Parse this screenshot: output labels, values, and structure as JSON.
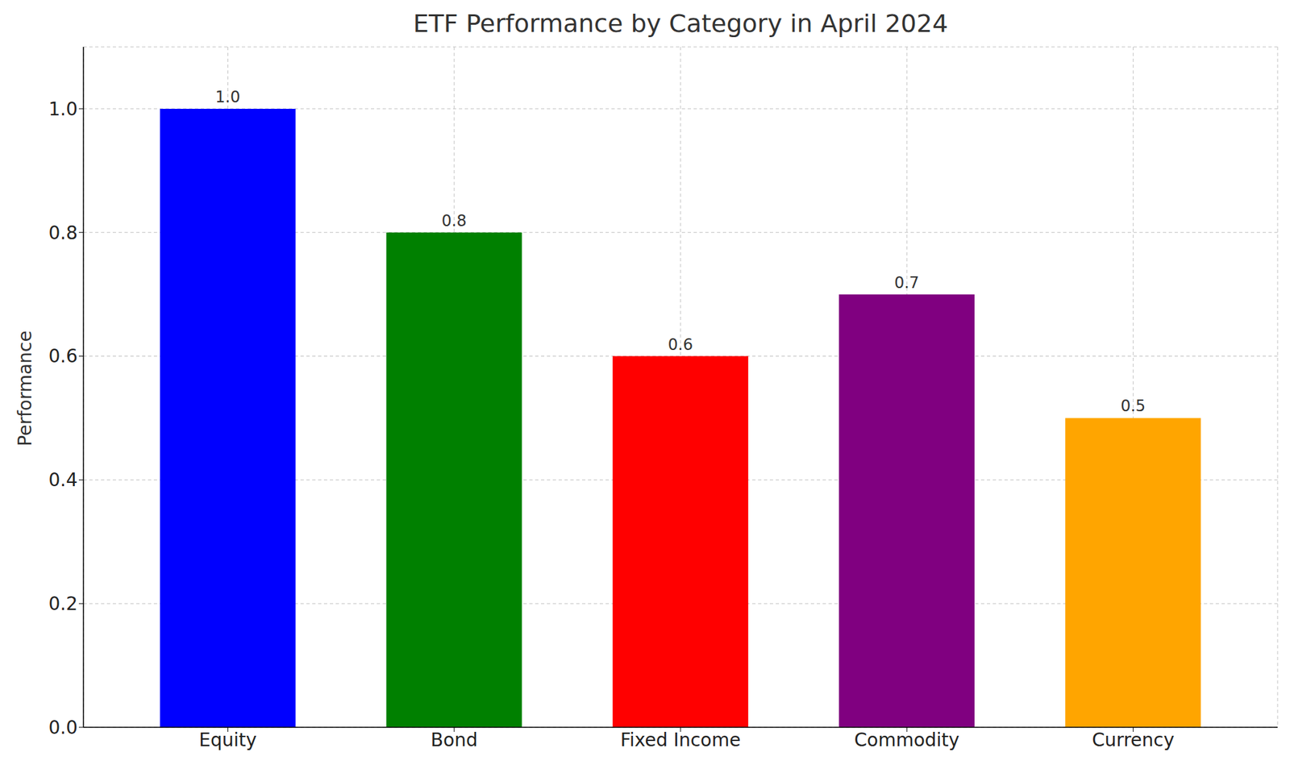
{
  "chart_data": {
    "type": "bar",
    "title": "ETF Performance by Category in April 2024",
    "y_label": "Performance",
    "categories": [
      "Equity",
      "Bond",
      "Fixed Income",
      "Commodity",
      "Currency"
    ],
    "values": [
      1.0,
      0.8,
      0.6,
      0.7,
      0.5
    ],
    "value_labels": [
      "1.0",
      "0.8",
      "0.6",
      "0.7",
      "0.5"
    ],
    "colors": [
      "#0000ff",
      "#008000",
      "#ff0000",
      "#800080",
      "#ffa500"
    ],
    "ylim": [
      0,
      1.1
    ],
    "yticks": [
      {
        "value": 0,
        "label": "0.0"
      },
      0.2,
      0.4,
      0.6,
      0.8,
      {
        "value": 1.0,
        "label": "1.0"
      }
    ],
    "grid": true,
    "data_labels": true
  }
}
